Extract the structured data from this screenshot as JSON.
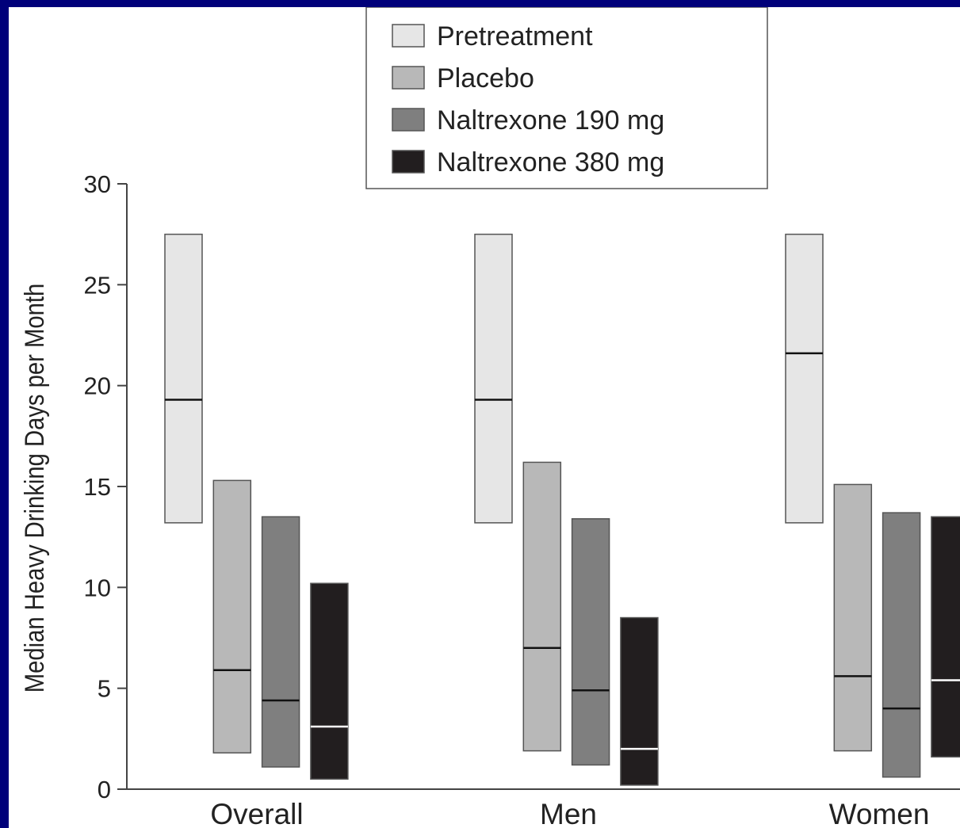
{
  "chart_data": {
    "type": "bar",
    "subtype": "floating-range-with-median",
    "title": "",
    "ylabel": "Median Heavy Drinking Days per Month",
    "xlabel": "",
    "ylim": [
      0,
      30
    ],
    "yticks": [
      0,
      5,
      10,
      15,
      20,
      25,
      30
    ],
    "categories": [
      "Overall",
      "Men",
      "Women"
    ],
    "legend_position": "top-center",
    "series": [
      {
        "name": "Pretreatment",
        "color": "#e6e6e6",
        "median_line_color": "#111111",
        "ranges": [
          {
            "low": 13.2,
            "high": 27.5,
            "median": 19.3
          },
          {
            "low": 13.2,
            "high": 27.5,
            "median": 19.3
          },
          {
            "low": 13.2,
            "high": 27.5,
            "median": 21.6
          }
        ]
      },
      {
        "name": "Placebo",
        "color": "#b8b8b8",
        "median_line_color": "#111111",
        "ranges": [
          {
            "low": 1.8,
            "high": 15.3,
            "median": 5.9
          },
          {
            "low": 1.9,
            "high": 16.2,
            "median": 7.0
          },
          {
            "low": 1.9,
            "high": 15.1,
            "median": 5.6
          }
        ]
      },
      {
        "name": "Naltrexone 190 mg",
        "color": "#7f7f7f",
        "median_line_color": "#111111",
        "ranges": [
          {
            "low": 1.1,
            "high": 13.5,
            "median": 4.4
          },
          {
            "low": 1.2,
            "high": 13.4,
            "median": 4.9
          },
          {
            "low": 0.6,
            "high": 13.7,
            "median": 4.0
          }
        ]
      },
      {
        "name": "Naltrexone 380 mg",
        "color": "#221e1f",
        "median_line_color": "#ffffff",
        "ranges": [
          {
            "low": 0.5,
            "high": 10.2,
            "median": 3.1
          },
          {
            "low": 0.2,
            "high": 8.5,
            "median": 2.0
          },
          {
            "low": 1.6,
            "high": 13.5,
            "median": 5.4
          }
        ]
      }
    ]
  }
}
